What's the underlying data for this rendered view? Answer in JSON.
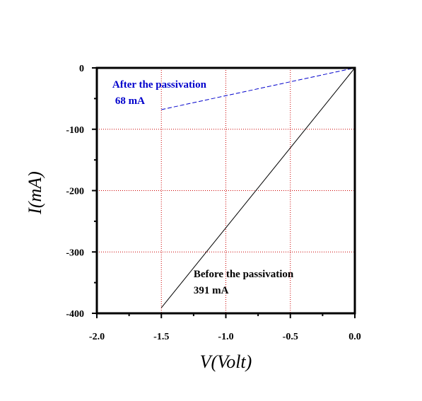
{
  "chart_data": {
    "type": "line",
    "title": "",
    "xlabel": "V(Volt)",
    "ylabel": "I(mA)",
    "xlim": [
      -2.0,
      0.0
    ],
    "ylim": [
      -400,
      0
    ],
    "x_ticks": [
      "-2.0",
      "-1.5",
      "-1.0",
      "-0.5",
      "0.0"
    ],
    "y_ticks": [
      "0",
      "-100",
      "-200",
      "-300",
      "-400"
    ],
    "x_tick_values": [
      -2.0,
      -1.5,
      -1.0,
      -0.5,
      0.0
    ],
    "y_tick_values": [
      0,
      -100,
      -200,
      -300,
      -400
    ],
    "grid": true,
    "grid_color": "#cc0000",
    "series": [
      {
        "color": "#0000cc",
        "style": "dashed",
        "x": [
          -1.5,
          0.0
        ],
        "y": [
          -68,
          0
        ]
      },
      {
        "color": "#000000",
        "style": "solid",
        "x": [
          -1.5,
          0.0
        ],
        "y": [
          -391,
          0
        ]
      }
    ],
    "annotations": [
      {
        "lines": [
          "After the passivation",
          "68 mA"
        ],
        "color": "#0000cc",
        "x": -1.88,
        "y": -32
      },
      {
        "lines": [
          "Before the passivation",
          "391 mA"
        ],
        "color": "#000000",
        "x": -1.25,
        "y": -341
      }
    ]
  }
}
